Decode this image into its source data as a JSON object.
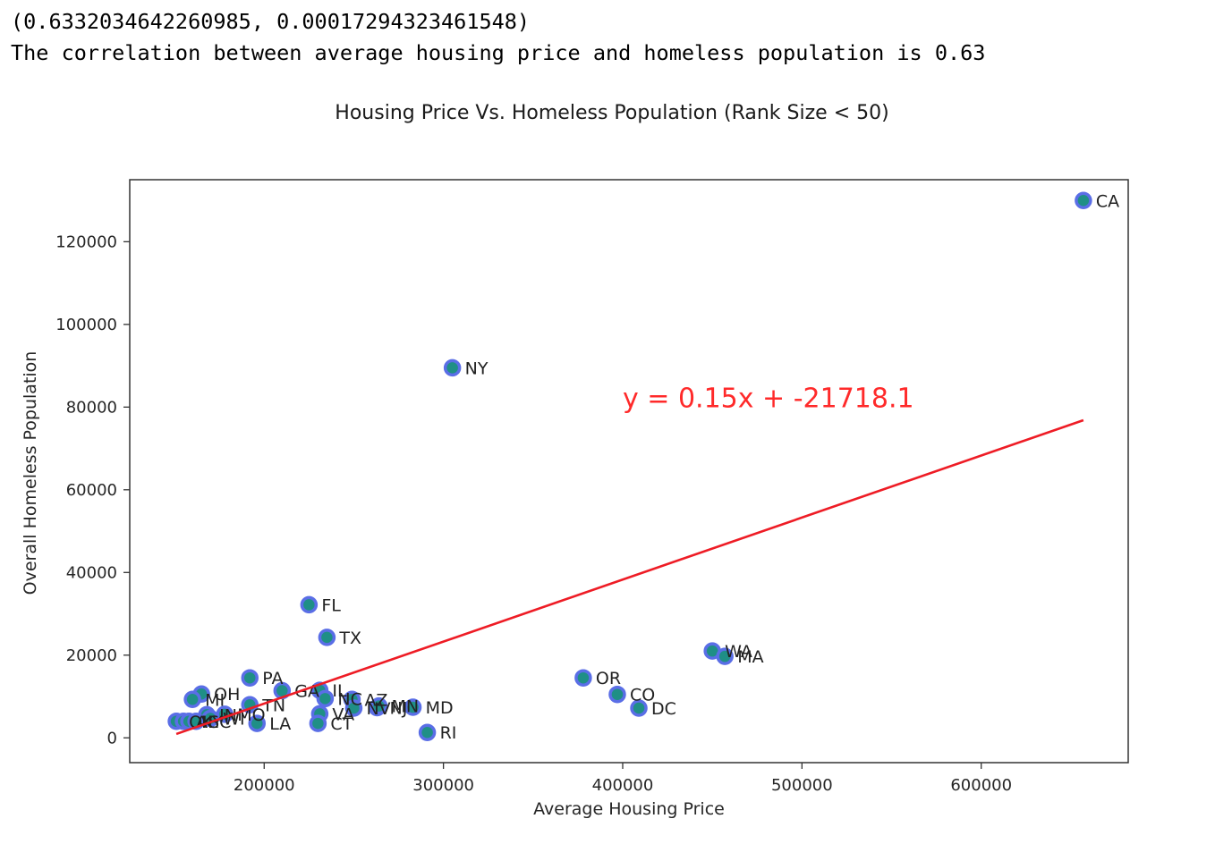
{
  "output": {
    "line1": "(0.6332034642260985, 0.00017294323461548)",
    "line2": "The correlation between average housing price and homeless population is 0.63"
  },
  "colors": {
    "marker_edge": "#5a6ee6",
    "marker_face": "#1f8f86",
    "regression_line": "#ee1c25",
    "equation_text": "#ff2a2a",
    "axes": "#333333"
  },
  "chart_data": {
    "type": "scatter",
    "title": "Housing Price Vs. Homeless Population (Rank Size < 50)",
    "xlabel": "Average Housing Price",
    "ylabel": "Overall Homeless Population",
    "xlim": [
      125000,
      682000
    ],
    "ylim": [
      -6000,
      135000
    ],
    "xticks": [
      200000,
      300000,
      400000,
      500000,
      600000
    ],
    "yticks": [
      0,
      20000,
      40000,
      60000,
      80000,
      100000,
      120000
    ],
    "grid": false,
    "points": [
      {
        "label": "CA",
        "x": 657000,
        "y": 129972
      },
      {
        "label": "NY",
        "x": 305000,
        "y": 89503
      },
      {
        "label": "FL",
        "x": 225000,
        "y": 32190
      },
      {
        "label": "TX",
        "x": 235000,
        "y": 24300
      },
      {
        "label": "WA",
        "x": 450000,
        "y": 21000
      },
      {
        "label": "MA",
        "x": 457000,
        "y": 19700
      },
      {
        "label": "OR",
        "x": 378000,
        "y": 14500
      },
      {
        "label": "PA",
        "x": 192000,
        "y": 14500
      },
      {
        "label": "GA",
        "x": 210000,
        "y": 11400
      },
      {
        "label": "IL",
        "x": 231000,
        "y": 11500
      },
      {
        "label": "CO",
        "x": 397000,
        "y": 10500
      },
      {
        "label": "OH",
        "x": 165000,
        "y": 10600
      },
      {
        "label": "MI",
        "x": 160000,
        "y": 9300
      },
      {
        "label": "NC",
        "x": 234000,
        "y": 9500
      },
      {
        "label": "AZ",
        "x": 249000,
        "y": 9300
      },
      {
        "label": "TN",
        "x": 192000,
        "y": 8000
      },
      {
        "label": "NV",
        "x": 250000,
        "y": 7200
      },
      {
        "label": "NJ",
        "x": 263000,
        "y": 7300
      },
      {
        "label": "MN",
        "x": 264000,
        "y": 7700
      },
      {
        "label": "MD",
        "x": 283000,
        "y": 7400
      },
      {
        "label": "DC",
        "x": 409000,
        "y": 7200
      },
      {
        "label": "IN",
        "x": 168000,
        "y": 5600
      },
      {
        "label": "MO",
        "x": 178000,
        "y": 5700
      },
      {
        "label": "VA",
        "x": 231000,
        "y": 5800
      },
      {
        "label": "WI",
        "x": 170000,
        "y": 4700
      },
      {
        "label": "OK",
        "x": 151000,
        "y": 4000
      },
      {
        "label": "AL",
        "x": 155000,
        "y": 4000
      },
      {
        "label": "KY",
        "x": 158000,
        "y": 4000
      },
      {
        "label": "SC",
        "x": 162000,
        "y": 4000
      },
      {
        "label": "LA",
        "x": 196000,
        "y": 3500
      },
      {
        "label": "CT",
        "x": 230000,
        "y": 3500
      },
      {
        "label": "RI",
        "x": 291000,
        "y": 1300
      }
    ],
    "regression": {
      "slope": 0.15,
      "intercept": -21718.1,
      "x_range": [
        151000,
        657000
      ],
      "equation": "y = 0.15x + -21718.1",
      "equation_position": [
        400000,
        80000
      ]
    }
  }
}
